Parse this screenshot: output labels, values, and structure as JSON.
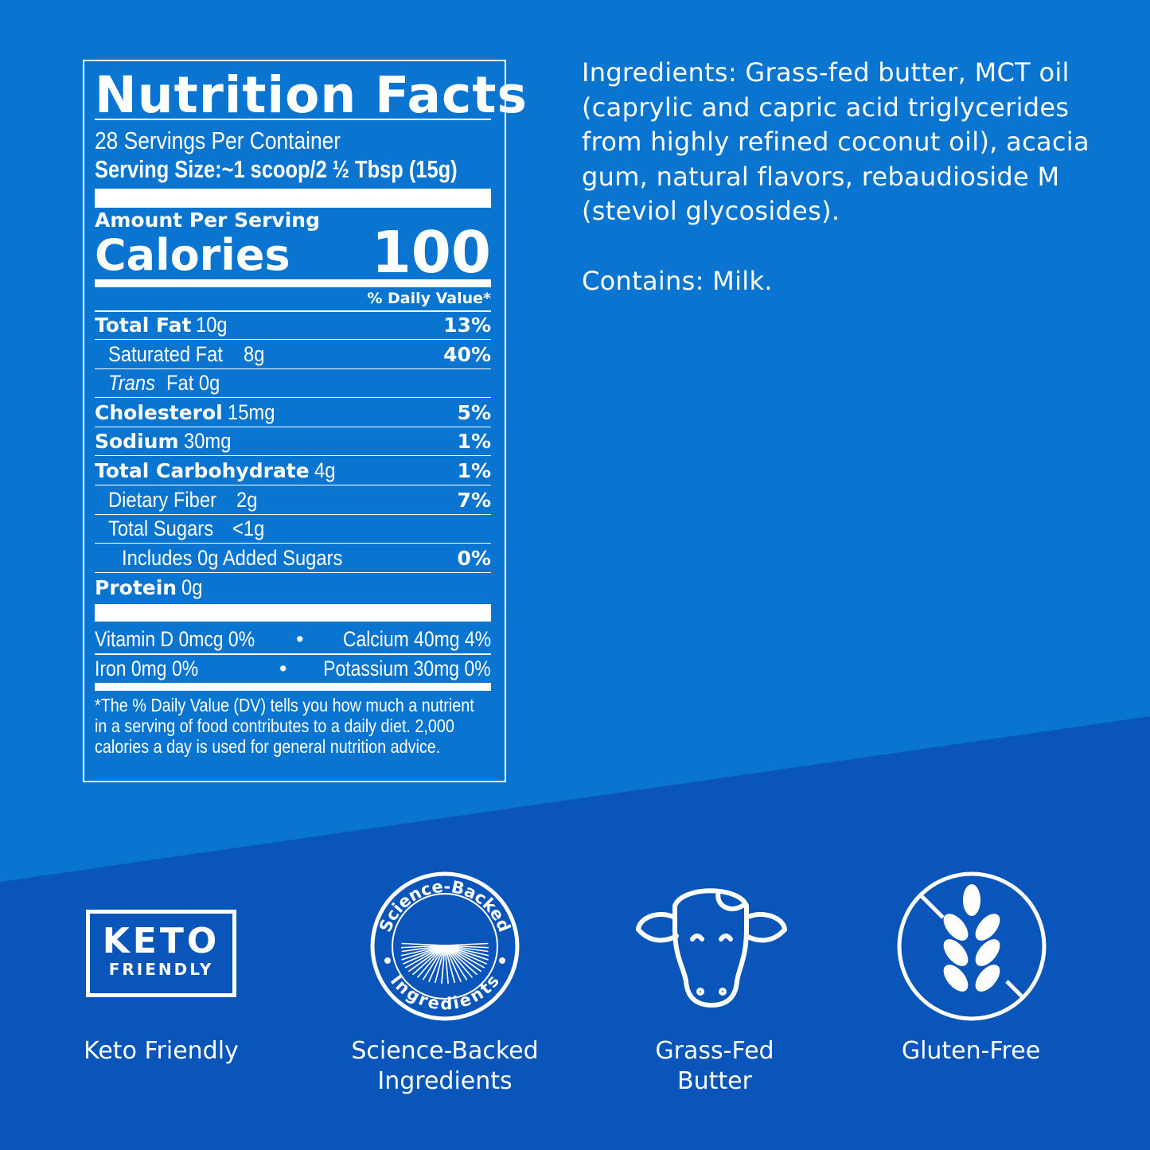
{
  "colors": {
    "background": "#0a74d1",
    "band": "#0a55b9",
    "text": "#ffffff"
  },
  "nutrition": {
    "title": "Nutrition Facts",
    "servings": "28 Servings Per Container",
    "serving_size": "Serving Size:~1 scoop/2 ½ Tbsp (15g)",
    "amount_per_serving": "Amount Per Serving",
    "calories_label": "Calories",
    "calories": "100",
    "dv_header": "% Daily Value*",
    "rows": [
      {
        "name": "Total Fat",
        "amount": "10g",
        "dv": "13%"
      },
      {
        "name": "Saturated Fat",
        "amount": "8g",
        "dv": "40%"
      },
      {
        "name": "Trans",
        "amount": "Fat 0g",
        "dv": ""
      },
      {
        "name": "Cholesterol",
        "amount": "15mg",
        "dv": "5%"
      },
      {
        "name": "Sodium",
        "amount": "30mg",
        "dv": "1%"
      },
      {
        "name": "Total Carbohydrate",
        "amount": "4g",
        "dv": "1%"
      },
      {
        "name": "Dietary Fiber",
        "amount": "2g",
        "dv": "7%"
      },
      {
        "name": "Total Sugars",
        "amount": "<1g",
        "dv": ""
      },
      {
        "name": "Includes 0g Added Sugars",
        "amount": "",
        "dv": "0%"
      },
      {
        "name": "Protein",
        "amount": "0g",
        "dv": ""
      }
    ],
    "vitamins": [
      {
        "left": "Vitamin D 0mcg 0%",
        "right": "Calcium 40mg 4%"
      },
      {
        "left": "Iron 0mg 0%",
        "right": "Potassium 30mg 0%"
      }
    ],
    "footnote": "*The % Daily Value (DV) tells you how much a nutrient in a serving of food contributes to a daily diet. 2,000 calories a day is used for general nutrition advice."
  },
  "ingredients": {
    "text": "Ingredients: Grass-fed butter, MCT oil (caprylic and capric acid triglycerides from highly refined coconut oil), acacia gum, natural flavors, rebaudioside M (steviol glycosides).",
    "contains": "Contains: Milk."
  },
  "badges": [
    {
      "icon": "keto-friendly-icon",
      "icon_text_1": "KETO",
      "icon_text_2": "FRIENDLY",
      "label": "Keto Friendly"
    },
    {
      "icon": "science-backed-icon",
      "icon_text": "Science-Backed • Ingredients",
      "label_1": "Science-Backed",
      "label_2": "Ingredients"
    },
    {
      "icon": "cow-icon",
      "label_1": "Grass-Fed",
      "label_2": "Butter"
    },
    {
      "icon": "gluten-free-icon",
      "label": "Gluten-Free"
    }
  ]
}
